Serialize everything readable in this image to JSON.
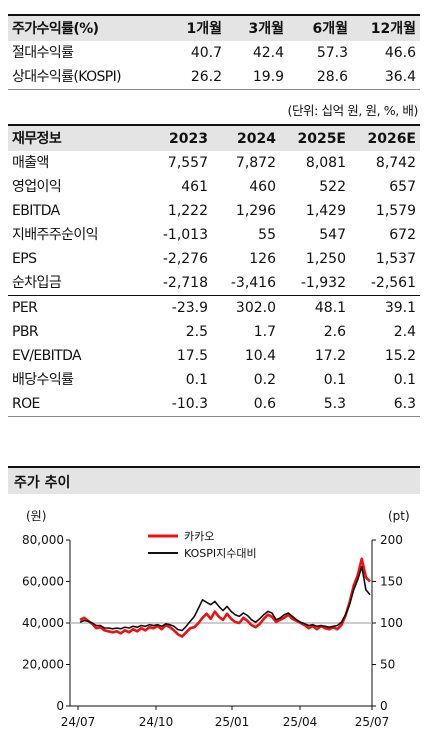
{
  "returns_table": {
    "headers": [
      "주가수익률(%)",
      "1개월",
      "3개월",
      "6개월",
      "12개월"
    ],
    "rows": [
      {
        "label": "절대수익률",
        "values": [
          "40.7",
          "42.4",
          "57.3",
          "46.6"
        ]
      },
      {
        "label": "상대수익률(KOSPI)",
        "values": [
          "26.2",
          "19.9",
          "28.6",
          "36.4"
        ]
      }
    ]
  },
  "unit_note": "(단위: 십억 원, 원, %, 배)",
  "financial_table": {
    "headers": [
      "재무정보",
      "2023",
      "2024",
      "2025E",
      "2026E"
    ],
    "rows": [
      {
        "label": "매출액",
        "values": [
          "7,557",
          "7,872",
          "8,081",
          "8,742"
        ]
      },
      {
        "label": "영업이익",
        "values": [
          "461",
          "460",
          "522",
          "657"
        ]
      },
      {
        "label": "EBITDA",
        "values": [
          "1,222",
          "1,296",
          "1,429",
          "1,579"
        ]
      },
      {
        "label": "지배주주순이익",
        "values": [
          "-1,013",
          "55",
          "547",
          "672"
        ]
      },
      {
        "label": "EPS",
        "values": [
          "-2,276",
          "126",
          "1,250",
          "1,537"
        ]
      },
      {
        "label": "순차입금",
        "values": [
          "-2,718",
          "-3,416",
          "-1,932",
          "-2,561"
        ]
      },
      {
        "label": "PER",
        "values": [
          "-23.9",
          "302.0",
          "48.1",
          "39.1"
        ]
      },
      {
        "label": "PBR",
        "values": [
          "2.5",
          "1.7",
          "2.6",
          "2.4"
        ]
      },
      {
        "label": "EV/EBITDA",
        "values": [
          "17.5",
          "10.4",
          "17.2",
          "15.2"
        ]
      },
      {
        "label": "배당수익률",
        "values": [
          "0.1",
          "0.2",
          "0.1",
          "0.1"
        ]
      },
      {
        "label": "ROE",
        "values": [
          "-10.3",
          "0.6",
          "5.3",
          "6.3"
        ]
      }
    ]
  },
  "chart_section_title": "주가 추이",
  "chart_data": {
    "type": "line",
    "y_left_unit": "(원)",
    "y_right_unit": "(pt)",
    "y_left_ticks": [
      "80,000",
      "60,000",
      "40,000",
      "20,000",
      "0"
    ],
    "y_right_ticks": [
      "200",
      "150",
      "100",
      "50",
      "0"
    ],
    "ylim_left": [
      0,
      80000
    ],
    "ylim_right": [
      0,
      200
    ],
    "x_tick_labels": [
      "24/07",
      "24/10",
      "25/01",
      "25/04",
      "25/07"
    ],
    "legend": [
      "카카오",
      "KOSPI지수대비"
    ],
    "colors": {
      "kakao": "#ee1111",
      "kospi": "#111111",
      "baseline": "#bbbbbb"
    },
    "baseline_right": 100,
    "series": [
      {
        "name": "카카오",
        "axis": "left",
        "values": [
          41500,
          42500,
          41000,
          39500,
          37500,
          38000,
          36500,
          36000,
          35500,
          36000,
          35000,
          36500,
          35500,
          37000,
          36000,
          37500,
          36500,
          38000,
          37500,
          38500,
          37000,
          39000,
          38000,
          36500,
          34500,
          33500,
          35500,
          37500,
          38000,
          40000,
          42500,
          44500,
          42000,
          45500,
          43000,
          41500,
          44500,
          42000,
          40500,
          40000,
          42500,
          41000,
          39000,
          38000,
          39500,
          42000,
          44000,
          43000,
          40500,
          41500,
          42500,
          44000,
          42000,
          41000,
          40000,
          39000,
          37500,
          38500,
          37000,
          38500,
          37500,
          37000,
          38000,
          37000,
          39000,
          43500,
          50000,
          58000,
          63000,
          71000,
          62000,
          60000
        ]
      },
      {
        "name": "KOSPI지수대비",
        "axis": "right",
        "values": [
          101,
          103,
          102,
          100,
          97,
          97,
          94,
          94,
          93,
          94,
          93,
          95,
          94,
          96,
          95,
          97,
          96,
          98,
          97,
          98,
          96,
          99,
          98,
          96,
          92,
          91,
          96,
          102,
          108,
          118,
          128,
          125,
          122,
          126,
          120,
          115,
          120,
          114,
          110,
          108,
          112,
          109,
          104,
          101,
          105,
          110,
          114,
          112,
          104,
          106,
          110,
          112,
          108,
          104,
          101,
          99,
          97,
          98,
          96,
          97,
          96,
          95,
          96,
          97,
          101,
          110,
          122,
          140,
          152,
          168,
          140,
          134
        ]
      }
    ]
  }
}
